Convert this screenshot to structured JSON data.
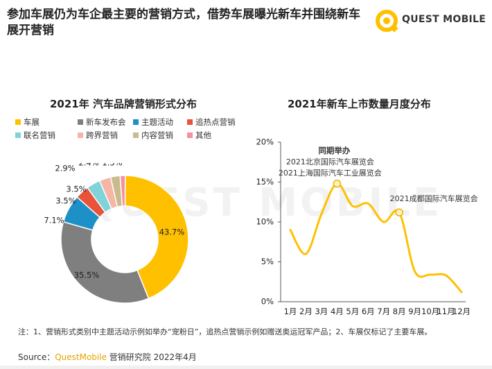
{
  "headline": "参加车展仍为车企最主要的营销方式，借势车展曝光新车并围绕新车展开营销",
  "logo": {
    "text": "QUEST MOBILE",
    "icon": "questmobile-logo-icon"
  },
  "watermark": "QUEST MOBILE",
  "colors": {
    "yellow": "#FFC000",
    "gray": "#7F7F7F",
    "blue": "#1E90C8",
    "red": "#E8533A",
    "teal": "#7FD3D9",
    "salmon": "#F6B6A6",
    "khaki": "#C9BC8C",
    "pink": "#F58FA2",
    "line": "#FFC000"
  },
  "chart_data": [
    {
      "type": "pie",
      "donut": true,
      "title": "2021年 汽车品牌营销形式分布",
      "legend_position": "top",
      "slices": [
        {
          "name": "车展",
          "value": 43.7,
          "label": "43.7%"
        },
        {
          "name": "新车发布会",
          "value": 35.5,
          "label": "35.5%"
        },
        {
          "name": "主题活动",
          "value": 7.1,
          "label": "7.1%"
        },
        {
          "name": "追热点营销",
          "value": 3.5,
          "label": "3.5%"
        },
        {
          "name": "联名营销",
          "value": 3.5,
          "label": "3.5%"
        },
        {
          "name": "跨界营销",
          "value": 2.9,
          "label": "2.9%"
        },
        {
          "name": "内容营销",
          "value": 2.4,
          "label": "2.4%"
        },
        {
          "name": "其他",
          "value": 1.3,
          "label": "1.3%"
        }
      ]
    },
    {
      "type": "line",
      "title": "2021年新车上市数量月度分布",
      "x": [
        "1月",
        "2月",
        "3月",
        "4月",
        "5月",
        "6月",
        "7月",
        "8月",
        "9月",
        "10月",
        "11月",
        "12月"
      ],
      "series": [
        {
          "values": [
            9.0,
            6.0,
            11.0,
            14.8,
            12.0,
            12.3,
            10.0,
            11.2,
            3.8,
            3.4,
            3.3,
            1.2
          ]
        }
      ],
      "yticks": [
        "0%",
        "5%",
        "10%",
        "15%",
        "20%"
      ],
      "ylim": [
        0,
        20
      ],
      "grid": false,
      "annotations": [
        {
          "x_index": 3,
          "lines": [
            "同期举办",
            "2021北京国际汽车展览会",
            "2021上海国际汽车工业展览会"
          ]
        },
        {
          "x_index": 7,
          "lines": [
            "2021成都国际汽车展览会"
          ]
        }
      ]
    }
  ],
  "note": "注：1、营销形式类别中主题活动示例如举办“宠粉日”，追热点营销示例如赠送奥运冠军产品；2、车展仅标记了主要车展。",
  "source": {
    "prefix": "Source：",
    "brand": "QuestMobile",
    "suffix": " 营销研究院 2022年4月"
  }
}
